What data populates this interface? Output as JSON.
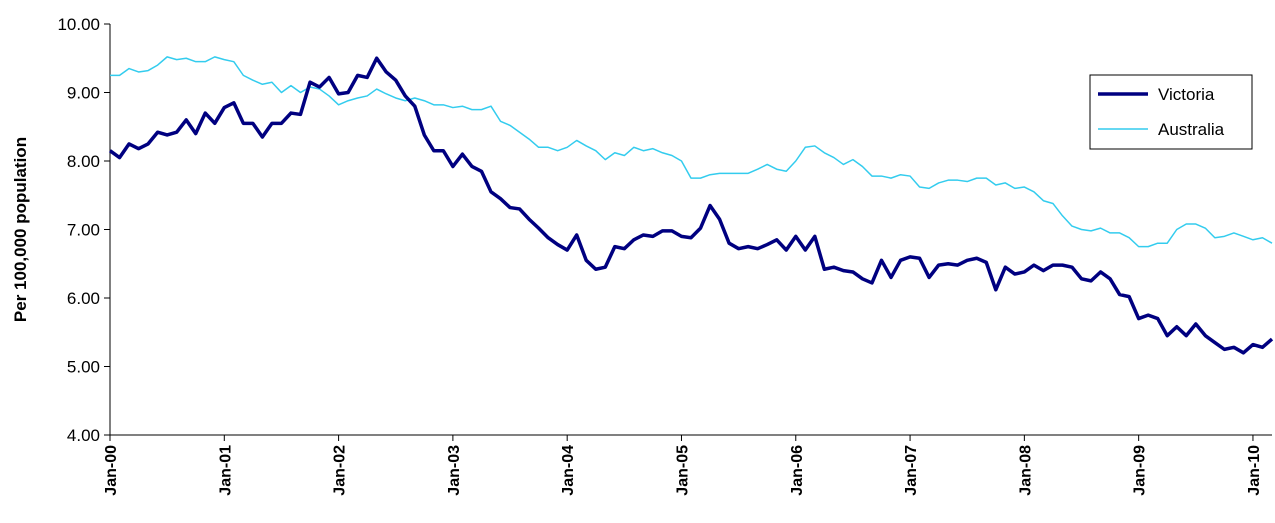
{
  "chart_data": {
    "type": "line",
    "title": "",
    "xlabel": "",
    "ylabel": "Per 100,000 population",
    "ylim": [
      4.0,
      10.0
    ],
    "yticks": [
      "4.00",
      "5.00",
      "6.00",
      "7.00",
      "8.00",
      "9.00",
      "10.00"
    ],
    "xticks": [
      "Jan-00",
      "Jan-01",
      "Jan-02",
      "Jan-03",
      "Jan-04",
      "Jan-05",
      "Jan-06",
      "Jan-07",
      "Jan-08",
      "Jan-09",
      "Jan-10"
    ],
    "x_start": "Jan-00",
    "x_frequency": "monthly",
    "grid": false,
    "legend_position": "right",
    "series": [
      {
        "name": "Victoria",
        "color": "#000080",
        "values": [
          8.15,
          8.05,
          8.25,
          8.18,
          8.25,
          8.42,
          8.38,
          8.42,
          8.6,
          8.4,
          8.7,
          8.55,
          8.78,
          8.85,
          8.55,
          8.55,
          8.35,
          8.55,
          8.55,
          8.7,
          8.68,
          9.15,
          9.08,
          9.22,
          8.98,
          9.0,
          9.25,
          9.22,
          9.5,
          9.3,
          9.18,
          8.95,
          8.8,
          8.38,
          8.15,
          8.15,
          7.92,
          8.1,
          7.92,
          7.85,
          7.55,
          7.45,
          7.32,
          7.3,
          7.15,
          7.02,
          6.88,
          6.78,
          6.7,
          6.92,
          6.55,
          6.42,
          6.45,
          6.75,
          6.72,
          6.85,
          6.92,
          6.9,
          6.98,
          6.98,
          6.9,
          6.88,
          7.02,
          7.35,
          7.15,
          6.8,
          6.72,
          6.75,
          6.72,
          6.78,
          6.85,
          6.7,
          6.9,
          6.7,
          6.9,
          6.42,
          6.45,
          6.4,
          6.38,
          6.28,
          6.22,
          6.55,
          6.3,
          6.55,
          6.6,
          6.58,
          6.3,
          6.48,
          6.5,
          6.48,
          6.55,
          6.58,
          6.52,
          6.12,
          6.45,
          6.35,
          6.38,
          6.48,
          6.4,
          6.48,
          6.48,
          6.45,
          6.28,
          6.25,
          6.38,
          6.28,
          6.05,
          6.02,
          5.7,
          5.75,
          5.7,
          5.45,
          5.58,
          5.45,
          5.62,
          5.45,
          5.35,
          5.25,
          5.28,
          5.2,
          5.32,
          5.28,
          5.4
        ]
      },
      {
        "name": "Australia",
        "color": "#33CCEE",
        "values": [
          9.25,
          9.25,
          9.35,
          9.3,
          9.32,
          9.4,
          9.52,
          9.48,
          9.5,
          9.45,
          9.45,
          9.52,
          9.48,
          9.45,
          9.25,
          9.18,
          9.12,
          9.15,
          9.0,
          9.1,
          9.0,
          9.08,
          9.05,
          8.95,
          8.82,
          8.88,
          8.92,
          8.95,
          9.05,
          8.98,
          8.92,
          8.88,
          8.92,
          8.88,
          8.82,
          8.82,
          8.78,
          8.8,
          8.75,
          8.75,
          8.8,
          8.58,
          8.52,
          8.42,
          8.32,
          8.2,
          8.2,
          8.15,
          8.2,
          8.3,
          8.22,
          8.15,
          8.02,
          8.12,
          8.08,
          8.2,
          8.15,
          8.18,
          8.12,
          8.08,
          8.0,
          7.75,
          7.75,
          7.8,
          7.82,
          7.82,
          7.82,
          7.82,
          7.88,
          7.95,
          7.88,
          7.85,
          8.0,
          8.2,
          8.22,
          8.12,
          8.05,
          7.95,
          8.02,
          7.92,
          7.78,
          7.78,
          7.75,
          7.8,
          7.78,
          7.62,
          7.6,
          7.68,
          7.72,
          7.72,
          7.7,
          7.75,
          7.75,
          7.65,
          7.68,
          7.6,
          7.62,
          7.55,
          7.42,
          7.38,
          7.2,
          7.05,
          7.0,
          6.98,
          7.02,
          6.95,
          6.95,
          6.88,
          6.75,
          6.75,
          6.8,
          6.8,
          7.0,
          7.08,
          7.08,
          7.02,
          6.88,
          6.9,
          6.95,
          6.9,
          6.85,
          6.88,
          6.8
        ]
      }
    ]
  }
}
